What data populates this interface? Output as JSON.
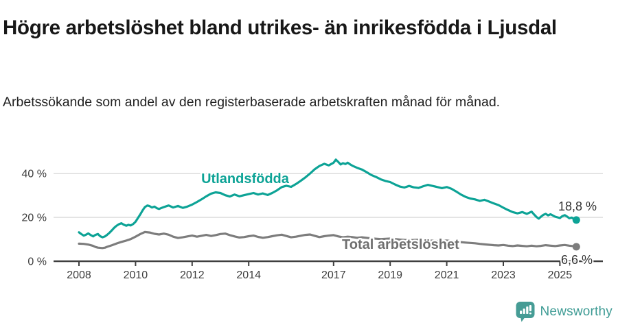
{
  "header": {
    "title": "Högre arbetslöshet bland utrikes- än inrikesfödda i Ljusdal",
    "subtitle": "Arbetssökande som andel av den registerbaserade arbetskraften månad för månad."
  },
  "chart_data": {
    "type": "line",
    "title": "",
    "xlabel": "",
    "ylabel": "",
    "xlim": [
      2008,
      2025.7
    ],
    "ylim": [
      0,
      48
    ],
    "grid": "horizontal",
    "x_ticks": [
      {
        "year": 2008,
        "label": "2008"
      },
      {
        "year": 2010,
        "label": "2010"
      },
      {
        "year": 2012,
        "label": "2012"
      },
      {
        "year": 2014,
        "label": "2014"
      },
      {
        "year": 2017,
        "label": "2017"
      },
      {
        "year": 2019,
        "label": "2019"
      },
      {
        "year": 2021,
        "label": "2021"
      },
      {
        "year": 2023,
        "label": "2023"
      },
      {
        "year": 2025,
        "label": "2025"
      }
    ],
    "y_ticks": [
      {
        "value": 0,
        "label": "0 %"
      },
      {
        "value": 20,
        "label": "20 %"
      },
      {
        "value": 40,
        "label": "40 %"
      }
    ],
    "series": [
      {
        "name": "Utlandsfödda",
        "color": "#0da396",
        "end_value": 18.8,
        "end_label": "18,8 %",
        "points": [
          [
            2008.0,
            13.2
          ],
          [
            2008.08,
            12.4
          ],
          [
            2008.17,
            11.7
          ],
          [
            2008.25,
            12.1
          ],
          [
            2008.33,
            12.7
          ],
          [
            2008.42,
            11.9
          ],
          [
            2008.5,
            11.3
          ],
          [
            2008.58,
            12.0
          ],
          [
            2008.67,
            12.4
          ],
          [
            2008.75,
            11.4
          ],
          [
            2008.83,
            10.9
          ],
          [
            2008.92,
            11.3
          ],
          [
            2009.0,
            12.1
          ],
          [
            2009.08,
            13.0
          ],
          [
            2009.17,
            14.2
          ],
          [
            2009.25,
            15.3
          ],
          [
            2009.33,
            16.2
          ],
          [
            2009.42,
            16.9
          ],
          [
            2009.5,
            17.3
          ],
          [
            2009.58,
            16.7
          ],
          [
            2009.67,
            16.2
          ],
          [
            2009.75,
            16.6
          ],
          [
            2009.83,
            16.3
          ],
          [
            2009.92,
            17.0
          ],
          [
            2010.0,
            18.0
          ],
          [
            2010.08,
            19.6
          ],
          [
            2010.17,
            21.4
          ],
          [
            2010.25,
            23.2
          ],
          [
            2010.33,
            24.7
          ],
          [
            2010.42,
            25.4
          ],
          [
            2010.5,
            25.1
          ],
          [
            2010.58,
            24.5
          ],
          [
            2010.67,
            24.9
          ],
          [
            2010.75,
            24.2
          ],
          [
            2010.83,
            23.8
          ],
          [
            2010.92,
            24.3
          ],
          [
            2011.0,
            24.7
          ],
          [
            2011.17,
            25.4
          ],
          [
            2011.33,
            24.5
          ],
          [
            2011.5,
            25.2
          ],
          [
            2011.67,
            24.3
          ],
          [
            2011.83,
            24.9
          ],
          [
            2012.0,
            25.8
          ],
          [
            2012.17,
            27.0
          ],
          [
            2012.33,
            28.2
          ],
          [
            2012.5,
            29.6
          ],
          [
            2012.67,
            30.8
          ],
          [
            2012.83,
            31.4
          ],
          [
            2013.0,
            31.1
          ],
          [
            2013.17,
            30.1
          ],
          [
            2013.33,
            29.5
          ],
          [
            2013.5,
            30.4
          ],
          [
            2013.67,
            29.6
          ],
          [
            2013.83,
            30.1
          ],
          [
            2014.0,
            30.6
          ],
          [
            2014.17,
            31.1
          ],
          [
            2014.33,
            30.4
          ],
          [
            2014.5,
            30.9
          ],
          [
            2014.67,
            30.2
          ],
          [
            2014.83,
            31.1
          ],
          [
            2015.0,
            32.3
          ],
          [
            2015.17,
            33.8
          ],
          [
            2015.33,
            34.4
          ],
          [
            2015.5,
            33.9
          ],
          [
            2015.67,
            35.2
          ],
          [
            2015.83,
            36.6
          ],
          [
            2016.0,
            38.2
          ],
          [
            2016.17,
            40.0
          ],
          [
            2016.33,
            41.9
          ],
          [
            2016.5,
            43.4
          ],
          [
            2016.67,
            44.4
          ],
          [
            2016.83,
            43.7
          ],
          [
            2017.0,
            44.9
          ],
          [
            2017.08,
            46.3
          ],
          [
            2017.17,
            45.2
          ],
          [
            2017.25,
            44.1
          ],
          [
            2017.33,
            44.7
          ],
          [
            2017.42,
            44.3
          ],
          [
            2017.5,
            44.9
          ],
          [
            2017.58,
            44.2
          ],
          [
            2017.67,
            43.5
          ],
          [
            2017.83,
            42.6
          ],
          [
            2018.0,
            41.8
          ],
          [
            2018.17,
            40.6
          ],
          [
            2018.33,
            39.3
          ],
          [
            2018.5,
            38.4
          ],
          [
            2018.67,
            37.3
          ],
          [
            2018.83,
            36.6
          ],
          [
            2019.0,
            36.1
          ],
          [
            2019.17,
            35.0
          ],
          [
            2019.33,
            34.1
          ],
          [
            2019.5,
            33.6
          ],
          [
            2019.67,
            34.3
          ],
          [
            2019.83,
            33.7
          ],
          [
            2020.0,
            33.4
          ],
          [
            2020.17,
            34.2
          ],
          [
            2020.33,
            34.8
          ],
          [
            2020.5,
            34.3
          ],
          [
            2020.67,
            33.8
          ],
          [
            2020.83,
            33.3
          ],
          [
            2021.0,
            33.8
          ],
          [
            2021.17,
            33.0
          ],
          [
            2021.33,
            31.8
          ],
          [
            2021.5,
            30.4
          ],
          [
            2021.67,
            29.3
          ],
          [
            2021.83,
            28.6
          ],
          [
            2022.0,
            28.2
          ],
          [
            2022.17,
            27.5
          ],
          [
            2022.33,
            28.0
          ],
          [
            2022.5,
            27.2
          ],
          [
            2022.67,
            26.3
          ],
          [
            2022.83,
            25.6
          ],
          [
            2023.0,
            24.4
          ],
          [
            2023.17,
            23.3
          ],
          [
            2023.33,
            22.4
          ],
          [
            2023.5,
            21.8
          ],
          [
            2023.67,
            22.4
          ],
          [
            2023.83,
            21.6
          ],
          [
            2024.0,
            22.6
          ],
          [
            2024.08,
            21.4
          ],
          [
            2024.17,
            20.2
          ],
          [
            2024.25,
            19.4
          ],
          [
            2024.33,
            20.3
          ],
          [
            2024.42,
            21.2
          ],
          [
            2024.5,
            21.6
          ],
          [
            2024.58,
            20.9
          ],
          [
            2024.67,
            21.4
          ],
          [
            2024.83,
            20.3
          ],
          [
            2025.0,
            19.7
          ],
          [
            2025.08,
            20.5
          ],
          [
            2025.17,
            21.0
          ],
          [
            2025.25,
            20.4
          ],
          [
            2025.33,
            19.6
          ],
          [
            2025.42,
            19.9
          ],
          [
            2025.5,
            19.2
          ],
          [
            2025.58,
            18.8
          ]
        ]
      },
      {
        "name": "Total arbetslöshet",
        "color": "#7d7d7d",
        "end_value": 6.6,
        "end_label": "6,6 %",
        "points": [
          [
            2008.0,
            8.0
          ],
          [
            2008.17,
            7.9
          ],
          [
            2008.33,
            7.6
          ],
          [
            2008.5,
            7.0
          ],
          [
            2008.58,
            6.5
          ],
          [
            2008.67,
            6.2
          ],
          [
            2008.83,
            6.0
          ],
          [
            2008.92,
            6.2
          ],
          [
            2009.0,
            6.6
          ],
          [
            2009.17,
            7.3
          ],
          [
            2009.33,
            8.1
          ],
          [
            2009.5,
            8.8
          ],
          [
            2009.67,
            9.4
          ],
          [
            2009.83,
            10.1
          ],
          [
            2010.0,
            11.2
          ],
          [
            2010.17,
            12.4
          ],
          [
            2010.33,
            13.3
          ],
          [
            2010.5,
            13.1
          ],
          [
            2010.67,
            12.5
          ],
          [
            2010.83,
            12.2
          ],
          [
            2011.0,
            12.6
          ],
          [
            2011.17,
            12.1
          ],
          [
            2011.33,
            11.2
          ],
          [
            2011.5,
            10.6
          ],
          [
            2011.67,
            10.9
          ],
          [
            2011.83,
            11.3
          ],
          [
            2012.0,
            11.7
          ],
          [
            2012.17,
            11.2
          ],
          [
            2012.33,
            11.6
          ],
          [
            2012.5,
            12.0
          ],
          [
            2012.67,
            11.5
          ],
          [
            2012.83,
            11.9
          ],
          [
            2013.0,
            12.4
          ],
          [
            2013.17,
            12.6
          ],
          [
            2013.33,
            11.9
          ],
          [
            2013.5,
            11.3
          ],
          [
            2013.67,
            10.8
          ],
          [
            2013.83,
            11.0
          ],
          [
            2014.0,
            11.4
          ],
          [
            2014.17,
            11.7
          ],
          [
            2014.33,
            11.1
          ],
          [
            2014.5,
            10.7
          ],
          [
            2014.67,
            11.0
          ],
          [
            2014.83,
            11.4
          ],
          [
            2015.0,
            11.8
          ],
          [
            2015.17,
            12.1
          ],
          [
            2015.33,
            11.5
          ],
          [
            2015.5,
            10.9
          ],
          [
            2015.67,
            11.2
          ],
          [
            2015.83,
            11.6
          ],
          [
            2016.0,
            12.0
          ],
          [
            2016.17,
            12.2
          ],
          [
            2016.33,
            11.6
          ],
          [
            2016.5,
            11.0
          ],
          [
            2016.67,
            11.4
          ],
          [
            2016.83,
            11.7
          ],
          [
            2017.0,
            11.9
          ],
          [
            2017.17,
            11.3
          ],
          [
            2017.33,
            10.9
          ],
          [
            2017.5,
            11.2
          ],
          [
            2017.67,
            11.0
          ],
          [
            2017.83,
            10.7
          ],
          [
            2018.0,
            10.9
          ],
          [
            2018.33,
            10.4
          ],
          [
            2018.67,
            10.1
          ],
          [
            2019.0,
            10.3
          ],
          [
            2019.33,
            9.9
          ],
          [
            2019.67,
            9.6
          ],
          [
            2020.0,
            9.8
          ],
          [
            2020.33,
            9.5
          ],
          [
            2020.67,
            9.2
          ],
          [
            2021.0,
            9.4
          ],
          [
            2021.33,
            8.9
          ],
          [
            2021.67,
            8.5
          ],
          [
            2022.0,
            8.2
          ],
          [
            2022.17,
            7.9
          ],
          [
            2022.33,
            7.7
          ],
          [
            2022.5,
            7.5
          ],
          [
            2022.67,
            7.3
          ],
          [
            2022.83,
            7.2
          ],
          [
            2023.0,
            7.4
          ],
          [
            2023.17,
            7.1
          ],
          [
            2023.33,
            6.9
          ],
          [
            2023.5,
            7.2
          ],
          [
            2023.67,
            7.0
          ],
          [
            2023.83,
            6.8
          ],
          [
            2024.0,
            7.1
          ],
          [
            2024.17,
            6.8
          ],
          [
            2024.33,
            7.0
          ],
          [
            2024.5,
            7.3
          ],
          [
            2024.67,
            7.1
          ],
          [
            2024.83,
            6.9
          ],
          [
            2025.0,
            7.2
          ],
          [
            2025.17,
            7.4
          ],
          [
            2025.33,
            7.1
          ],
          [
            2025.5,
            6.8
          ],
          [
            2025.58,
            6.6
          ]
        ]
      }
    ],
    "legend": "inline-labels"
  },
  "footer": {
    "brand": "Newsworthy",
    "brand_color": "#3f9c95"
  }
}
